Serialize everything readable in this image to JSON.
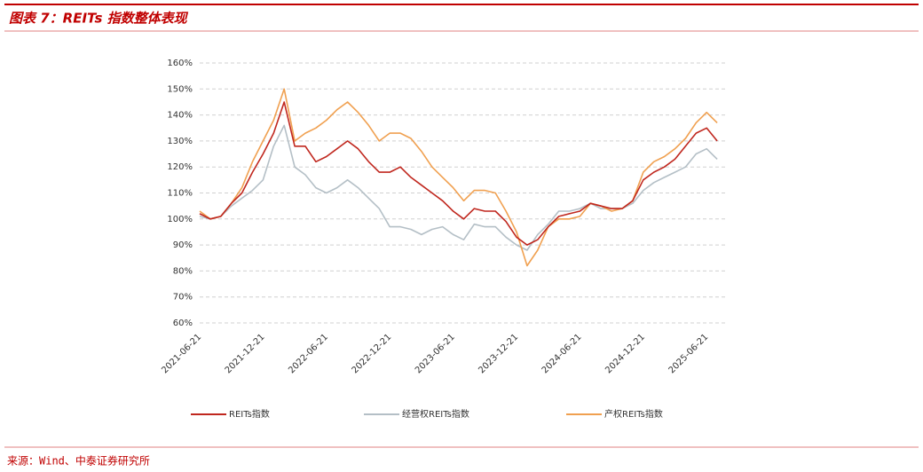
{
  "header": {
    "title": "图表 7：REITs 指数整体表现"
  },
  "chart_data": {
    "type": "line",
    "categories": [
      "2021-06-21",
      null,
      null,
      null,
      null,
      null,
      "2021-12-21",
      null,
      null,
      null,
      null,
      null,
      "2022-06-21",
      null,
      null,
      null,
      null,
      null,
      "2022-12-21",
      null,
      null,
      null,
      null,
      null,
      "2023-06-21",
      null,
      null,
      null,
      null,
      null,
      "2023-12-21",
      null,
      null,
      null,
      null,
      null,
      "2024-06-21",
      null,
      null,
      null,
      null,
      null,
      "2024-12-21",
      null,
      null,
      null,
      null,
      null,
      "2025-06-21",
      null
    ],
    "series": [
      {
        "name": "REITs指数",
        "color": "#c0271e",
        "values": [
          102,
          100,
          101,
          106,
          110,
          118,
          125,
          133,
          145,
          128,
          128,
          122,
          124,
          127,
          130,
          127,
          122,
          118,
          118,
          120,
          116,
          113,
          110,
          107,
          103,
          100,
          104,
          103,
          103,
          99,
          93,
          90,
          92,
          97,
          101,
          102,
          103,
          106,
          105,
          104,
          104,
          107,
          115,
          118,
          120,
          123,
          128,
          133,
          135,
          130
        ]
      },
      {
        "name": "经营权REITs指数",
        "color": "#b4bfc6",
        "values": [
          101,
          100,
          101,
          105,
          108,
          111,
          115,
          128,
          136,
          120,
          117,
          112,
          110,
          112,
          115,
          112,
          108,
          104,
          97,
          97,
          96,
          94,
          96,
          97,
          94,
          92,
          98,
          97,
          97,
          93,
          90,
          88,
          94,
          98,
          103,
          103,
          104,
          106,
          104,
          104,
          104,
          106,
          111,
          114,
          116,
          118,
          120,
          125,
          127,
          123
        ]
      },
      {
        "name": "产权REITs指数",
        "color": "#f0a050",
        "values": [
          103,
          100,
          101,
          106,
          112,
          122,
          130,
          138,
          150,
          130,
          133,
          135,
          138,
          142,
          145,
          141,
          136,
          130,
          133,
          133,
          131,
          126,
          120,
          116,
          112,
          107,
          111,
          111,
          110,
          103,
          95,
          82,
          88,
          97,
          100,
          100,
          101,
          106,
          105,
          103,
          104,
          107,
          118,
          122,
          124,
          127,
          131,
          137,
          141,
          137
        ]
      }
    ],
    "ylim": [
      60,
      160
    ],
    "yticks": [
      {
        "value": 60,
        "label": "60%"
      },
      {
        "value": 70,
        "label": "70%"
      },
      {
        "value": 80,
        "label": "80%"
      },
      {
        "value": 90,
        "label": "90%"
      },
      {
        "value": 100,
        "label": "100%"
      },
      {
        "value": 110,
        "label": "110%"
      },
      {
        "value": 120,
        "label": "120%"
      },
      {
        "value": 130,
        "label": "130%"
      },
      {
        "value": 140,
        "label": "140%"
      },
      {
        "value": 150,
        "label": "150%"
      },
      {
        "value": 160,
        "label": "160%"
      }
    ],
    "grid": true
  },
  "footer": {
    "source": "来源：Wind、中泰证券研究所"
  }
}
